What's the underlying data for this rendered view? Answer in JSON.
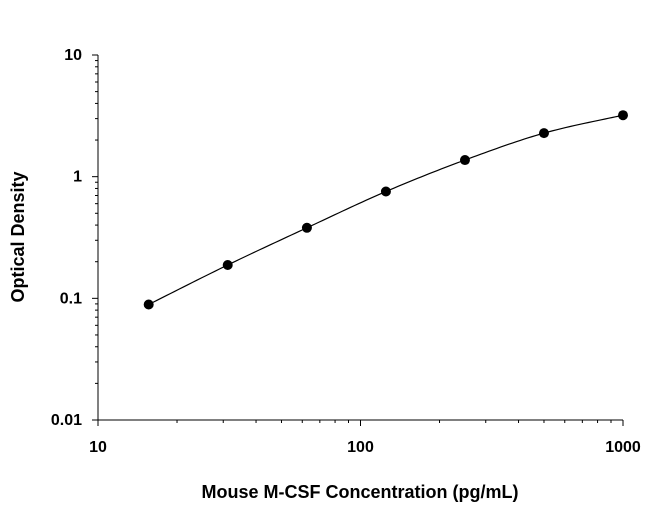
{
  "chart_data": {
    "type": "scatter",
    "title": "",
    "xlabel": "Mouse M-CSF Concentration (pg/mL)",
    "ylabel": "Optical Density",
    "x_scale": "log",
    "y_scale": "log",
    "xlim": [
      10,
      1000
    ],
    "ylim": [
      0.01,
      10
    ],
    "x_ticks": [
      10,
      100,
      1000
    ],
    "x_tick_labels": [
      "10",
      "100",
      "1000"
    ],
    "y_ticks": [
      0.01,
      0.1,
      1,
      10
    ],
    "y_tick_labels": [
      "0.01",
      "0.1",
      "1",
      "10"
    ],
    "grid": false,
    "legend": "none",
    "colors": {
      "points": "#000000",
      "line": "#000000",
      "axes": "#000000"
    },
    "series": [
      {
        "x": [
          15.6,
          31.2,
          62.5,
          125,
          250,
          500,
          1000
        ],
        "y": [
          0.089,
          0.188,
          0.38,
          0.755,
          1.37,
          2.28,
          3.2
        ],
        "fit_line": true
      }
    ]
  }
}
